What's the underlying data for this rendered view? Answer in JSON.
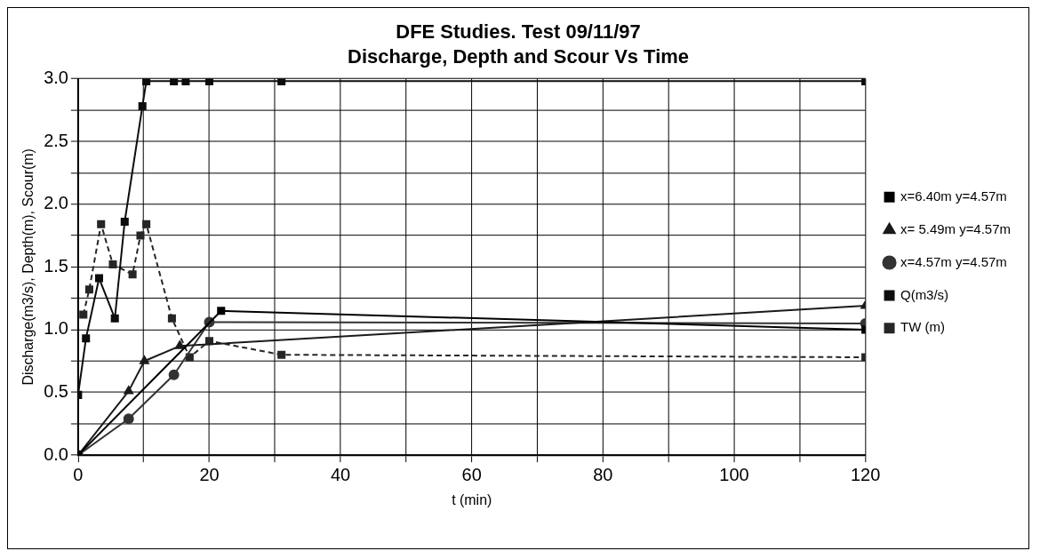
{
  "chart_data": {
    "type": "line",
    "title": "DFE Studies. Test 09/11/97",
    "subtitle": "Discharge, Depth and Scour Vs Time",
    "xlabel": "t (min)",
    "ylabel": "Discharge(m3/s), Depth(m), Scour(m)",
    "xlim": [
      0,
      120
    ],
    "xticks": [
      0,
      {
        "value": 10,
        "label": null
      },
      20,
      {
        "value": 30,
        "label": null
      },
      40,
      {
        "value": 50,
        "label": null
      },
      60,
      {
        "value": 70,
        "label": null
      },
      80,
      {
        "value": 90,
        "label": null
      },
      100,
      {
        "value": 110,
        "label": null
      },
      120
    ],
    "ylim": [
      0,
      3
    ],
    "yticks": [
      {
        "value": 0,
        "label": "0.0"
      },
      {
        "value": 0.25,
        "label": null
      },
      {
        "value": 0.5,
        "label": "0.5"
      },
      {
        "value": 0.75,
        "label": null
      },
      {
        "value": 1,
        "label": "1.0"
      },
      {
        "value": 1.25,
        "label": null
      },
      {
        "value": 1.5,
        "label": "1.5"
      },
      {
        "value": 1.75,
        "label": null
      },
      {
        "value": 2,
        "label": "2.0"
      },
      {
        "value": 2.25,
        "label": null
      },
      {
        "value": 2.5,
        "label": "2.5"
      },
      {
        "value": 2.75,
        "label": null
      },
      {
        "value": 3,
        "label": "3.0"
      }
    ],
    "grid": true,
    "legend": "right",
    "series": [
      {
        "name": "x=6.40m y=4.57m",
        "color": "#000000",
        "marker": "square",
        "line_style": "solid",
        "x": [
          0,
          21.8,
          120
        ],
        "values": [
          0,
          1.15,
          1.0
        ]
      },
      {
        "name": "x= 5.49m y=4.57m",
        "color": "#1a1a1a",
        "marker": "triangle",
        "line_style": "solid",
        "x": [
          0,
          7.7,
          10.1,
          15.5,
          120
        ],
        "values": [
          0,
          0.51,
          0.75,
          0.87,
          1.19
        ]
      },
      {
        "name": "x=4.57m y=4.57m",
        "color": "#333333",
        "marker": "circle",
        "line_style": "solid",
        "x": [
          0,
          7.7,
          14.6,
          20,
          120
        ],
        "values": [
          0,
          0.29,
          0.64,
          1.06,
          1.05
        ]
      },
      {
        "name": "Q(m3/s)",
        "color": "#0d0d0d",
        "marker": "square",
        "line_style": "solid",
        "x": [
          0,
          1.2,
          3.2,
          5.6,
          7.1,
          9.8,
          10.4,
          14.6,
          16.4,
          20,
          31,
          120
        ],
        "values": [
          0.48,
          0.93,
          1.41,
          1.09,
          1.86,
          2.78,
          2.98,
          2.98,
          2.98,
          2.98,
          2.98,
          2.98
        ]
      },
      {
        "name": "TW (m)",
        "color": "#262626",
        "marker": "square",
        "line_style": "dashed",
        "x": [
          0.8,
          1.7,
          3.5,
          5.3,
          8.3,
          9.5,
          10.4,
          14.3,
          17,
          20,
          31,
          120
        ],
        "values": [
          1.12,
          1.32,
          1.84,
          1.52,
          1.44,
          1.75,
          1.84,
          1.09,
          0.78,
          0.91,
          0.8,
          0.78
        ]
      }
    ]
  }
}
